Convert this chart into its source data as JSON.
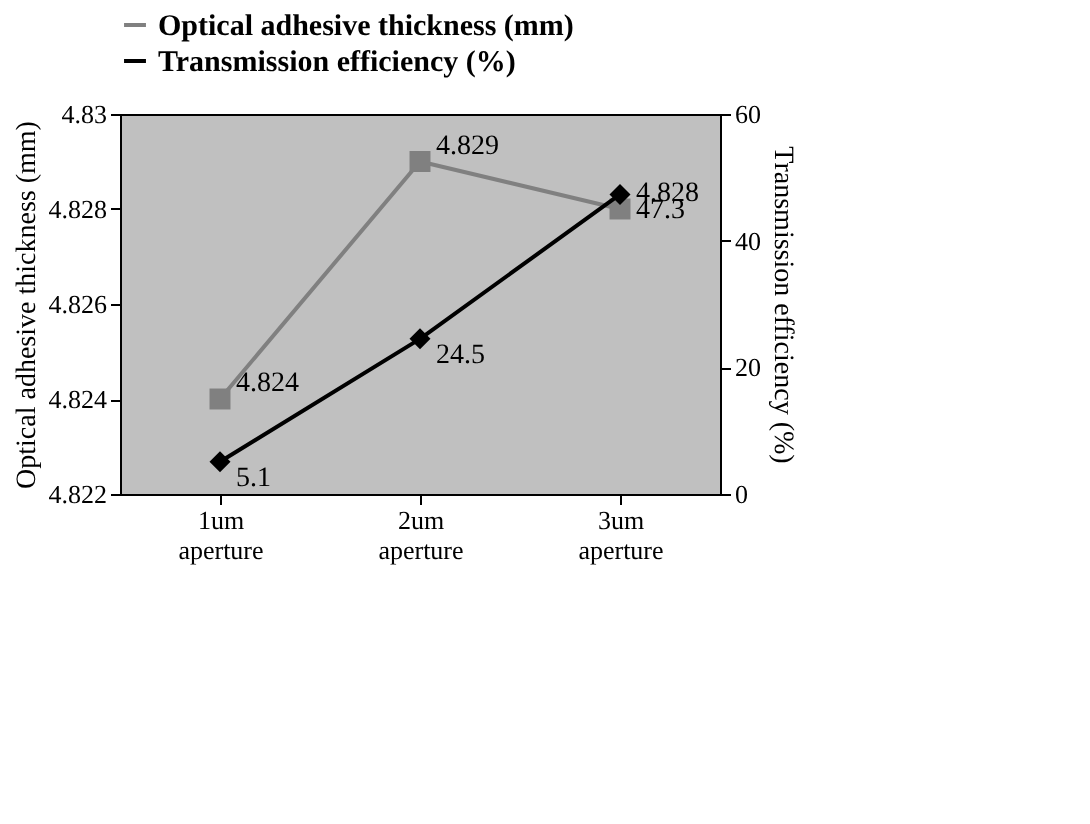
{
  "chart_data": {
    "type": "line",
    "categories": [
      "1um aperture",
      "2um aperture",
      "3um aperture"
    ],
    "ylabel": "Optical adhesive thickness (mm)",
    "y2label": "Transmission efficiency (%)",
    "ylim": [
      4.822,
      4.83
    ],
    "yticks": [
      4.822,
      4.824,
      4.826,
      4.828,
      4.83
    ],
    "y2lim": [
      0,
      60
    ],
    "y2ticks": [
      0,
      20,
      40,
      60
    ],
    "series": [
      {
        "name": "Optical adhesive thickness (mm)",
        "color": "#808080",
        "marker": "square",
        "values": [
          4.824,
          4.829,
          4.828
        ]
      },
      {
        "name": "Transmission efficiency (%)",
        "color": "#000000",
        "marker": "diamond",
        "axis": "y2",
        "values": [
          5.1,
          24.5,
          47.3
        ]
      }
    ],
    "data_labels": true,
    "grid": false,
    "legend": "top"
  }
}
